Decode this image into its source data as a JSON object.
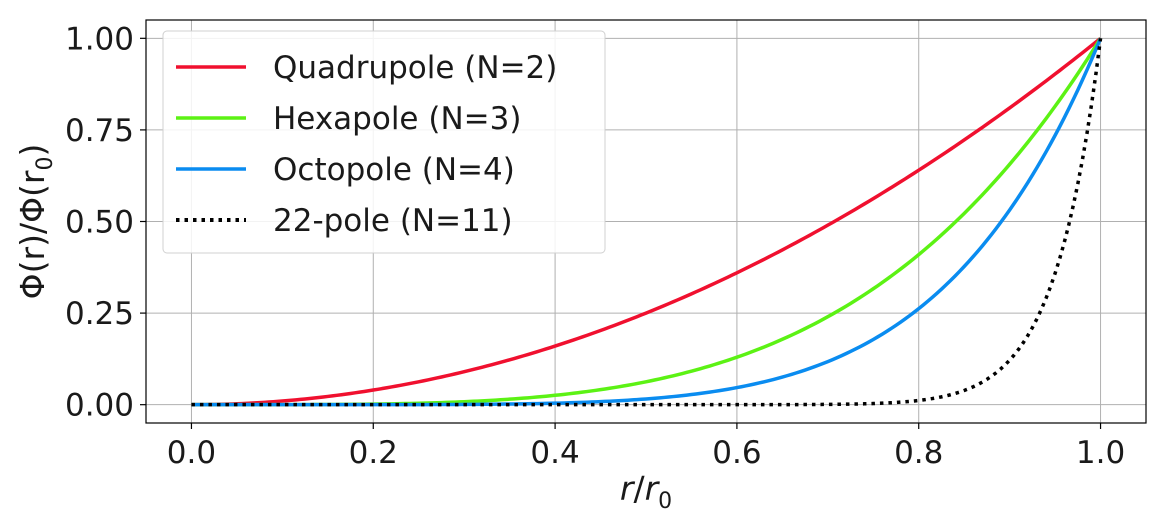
{
  "chart_data": {
    "type": "line",
    "xlabel_main": "r",
    "xlabel_denom": "r",
    "xlabel_sub": "0",
    "ylabel_main": "Φ(r)/Φ(r",
    "ylabel_sub": "0",
    "ylabel_close": ")",
    "xlim": [
      -0.05,
      1.05
    ],
    "ylim": [
      -0.05,
      1.05
    ],
    "x_ticks": [
      "0.0",
      "0.2",
      "0.4",
      "0.6",
      "0.8",
      "1.0"
    ],
    "y_ticks": [
      "0.00",
      "0.25",
      "0.50",
      "0.75",
      "1.00"
    ],
    "grid": true,
    "legend_position": "top-left",
    "series": [
      {
        "name": "Quadrupole (N=2)",
        "exponent": 2,
        "color": "#f0102f",
        "style": "solid",
        "x": [
          0.0,
          0.1,
          0.2,
          0.3,
          0.4,
          0.5,
          0.6,
          0.7,
          0.8,
          0.9,
          1.0
        ],
        "y": [
          0.0,
          0.01,
          0.04,
          0.09,
          0.16,
          0.25,
          0.36,
          0.49,
          0.64,
          0.81,
          1.0
        ]
      },
      {
        "name": "Hexapole (N=3)",
        "exponent": 4,
        "color": "#5cf214",
        "style": "solid",
        "x": [
          0.0,
          0.1,
          0.2,
          0.3,
          0.4,
          0.5,
          0.6,
          0.7,
          0.8,
          0.9,
          1.0
        ],
        "y": [
          0.0,
          0.0001,
          0.0016,
          0.0081,
          0.0256,
          0.0625,
          0.1296,
          0.2401,
          0.4096,
          0.6561,
          1.0
        ]
      },
      {
        "name": "Octopole (N=4)",
        "exponent": 6,
        "color": "#0a8cf0",
        "style": "solid",
        "x": [
          0.0,
          0.1,
          0.2,
          0.3,
          0.4,
          0.5,
          0.6,
          0.7,
          0.8,
          0.9,
          1.0
        ],
        "y": [
          0.0,
          0.0,
          0.0001,
          0.0007,
          0.0041,
          0.0156,
          0.0467,
          0.1176,
          0.2621,
          0.5314,
          1.0
        ]
      },
      {
        "name": "22-pole (N=11)",
        "exponent": 20,
        "color": "#000000",
        "style": "dotted",
        "x": [
          0.0,
          0.1,
          0.2,
          0.3,
          0.4,
          0.5,
          0.6,
          0.7,
          0.8,
          0.9,
          1.0
        ],
        "y": [
          0.0,
          0.0,
          0.0,
          0.0,
          0.0,
          0.0,
          0.0,
          0.0008,
          0.0115,
          0.1216,
          1.0
        ]
      }
    ]
  }
}
